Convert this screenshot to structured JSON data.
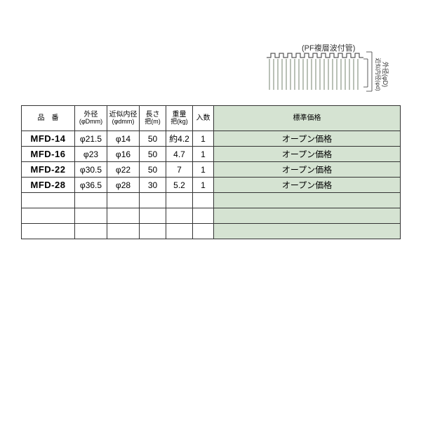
{
  "diagram": {
    "label": "(PF複層波付管)",
    "outer_label": "外径(φD)",
    "inner_label": "近似内径(φd)",
    "wave_color": "#76836f",
    "stroke": "#333333"
  },
  "table": {
    "headers": {
      "part": {
        "main": "品　番"
      },
      "od": {
        "main": "外径",
        "sub": "(φDmm)"
      },
      "id": {
        "main": "近似内径",
        "sub": "(φdmm)"
      },
      "len": {
        "main": "長さ",
        "sub": "把(m)"
      },
      "wt": {
        "main": "重量",
        "sub": "把(kg)"
      },
      "qty": {
        "main": "入数"
      },
      "price": {
        "main": "標準価格"
      }
    },
    "rows": [
      {
        "part": "MFD-14",
        "od": "φ21.5",
        "id": "φ14",
        "len": "50",
        "wt": "約4.2",
        "qty": "1",
        "price": "オープン価格"
      },
      {
        "part": "MFD-16",
        "od": "φ23",
        "id": "φ16",
        "len": "50",
        "wt": "4.7",
        "qty": "1",
        "price": "オープン価格"
      },
      {
        "part": "MFD-22",
        "od": "φ30.5",
        "id": "φ22",
        "len": "50",
        "wt": "7",
        "qty": "1",
        "price": "オープン価格"
      },
      {
        "part": "MFD-28",
        "od": "φ36.5",
        "id": "φ28",
        "len": "30",
        "wt": "5.2",
        "qty": "1",
        "price": "オープン価格"
      }
    ],
    "blank_rows": 3
  },
  "colors": {
    "price_bg": "#d5e3d2",
    "border": "#333333",
    "text": "#333333",
    "bg": "#ffffff"
  }
}
